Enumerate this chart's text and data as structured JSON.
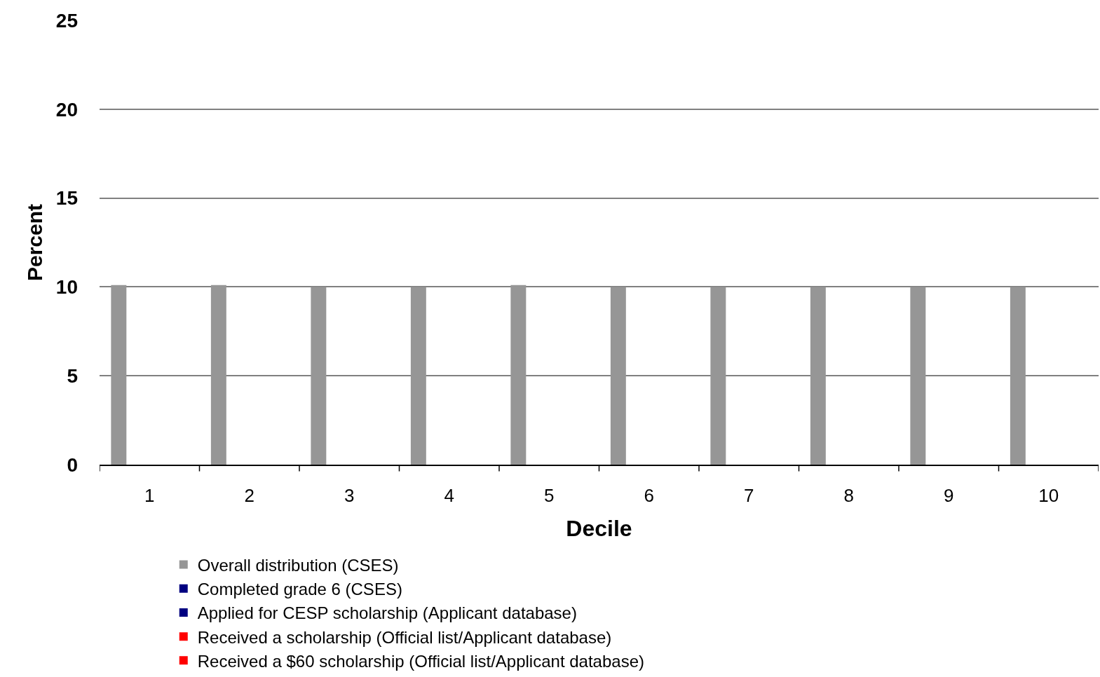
{
  "chart_data": {
    "type": "bar",
    "xlabel": "Decile",
    "ylabel": "Percent",
    "categories": [
      "1",
      "2",
      "3",
      "4",
      "5",
      "6",
      "7",
      "8",
      "9",
      "10"
    ],
    "series": [
      {
        "name": "Overall distribution (CSES)",
        "color": "#969696",
        "values": [
          10.1,
          10.1,
          10,
          10,
          10.1,
          10,
          10,
          10,
          10,
          10
        ]
      },
      {
        "name": "Completed grade 6 (CSES)",
        "color": "#000080",
        "values": [
          null,
          null,
          null,
          null,
          null,
          null,
          null,
          null,
          null,
          null
        ]
      },
      {
        "name": "Applied for CESP scholarship (Applicant database)",
        "color": "#000080",
        "values": [
          null,
          null,
          null,
          null,
          null,
          null,
          null,
          null,
          null,
          null
        ]
      },
      {
        "name": "Received a scholarship (Official list/Applicant database)",
        "color": "#ff0000",
        "values": [
          null,
          null,
          null,
          null,
          null,
          null,
          null,
          null,
          null,
          null
        ]
      },
      {
        "name": "Received a $60 scholarship (Official list/Applicant database)",
        "color": "#ff0000",
        "values": [
          null,
          null,
          null,
          null,
          null,
          null,
          null,
          null,
          null,
          null
        ]
      }
    ],
    "ylim": [
      0,
      25
    ],
    "yticks": [
      0,
      5,
      10,
      15,
      20,
      25
    ],
    "grid": "y",
    "legend": "bottom"
  }
}
